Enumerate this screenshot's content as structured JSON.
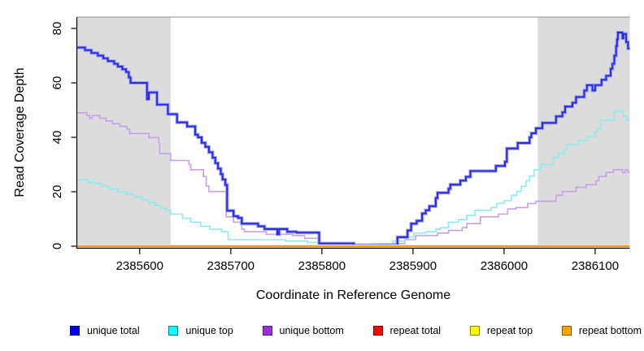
{
  "chart_data": {
    "type": "line",
    "subtype": "step",
    "title": "",
    "xlabel": "Coordinate in Reference Genome",
    "ylabel": "Read Coverage Depth",
    "xlim": [
      2385531,
      2386138
    ],
    "ylim": [
      0,
      80
    ],
    "grid": false,
    "legend_position": "bottom",
    "background_color": "#FFFFFF",
    "shaded_region_color": "#DCDCDC",
    "top_border_color": "#8F8F8F",
    "xticks": [
      {
        "value": 2385600,
        "label": "2385600"
      },
      {
        "value": 2385700,
        "label": "2385700"
      },
      {
        "value": 2385800,
        "label": "2385800"
      },
      {
        "value": 2385900,
        "label": "2385900"
      },
      {
        "value": 2386000,
        "label": "2386000"
      },
      {
        "value": 2386100,
        "label": "2386100"
      }
    ],
    "yticks": [
      {
        "value": 0,
        "label": "0"
      },
      {
        "value": 20,
        "label": "20"
      },
      {
        "value": 40,
        "label": "40"
      },
      {
        "value": 60,
        "label": "60"
      },
      {
        "value": 80,
        "label": "80"
      }
    ],
    "shaded_regions": [
      {
        "start": 2385531,
        "end": 2385634
      },
      {
        "start": 2386037,
        "end": 2386138
      }
    ],
    "series": [
      {
        "name": "unique total",
        "color": "#2B2BE3",
        "halo": "#9C9CF0",
        "width": 2,
        "zorder": 5,
        "x": [
          2385531,
          2385540,
          2385547,
          2385554,
          2385560,
          2385565,
          2385572,
          2385576,
          2385581,
          2385585,
          2385588,
          2385590,
          2385608,
          2385610,
          2385619,
          2385631,
          2385641,
          2385652,
          2385661,
          2385664,
          2385668,
          2385672,
          2385676,
          2385680,
          2385683,
          2385686,
          2385689,
          2385691,
          2385694,
          2385696,
          2385703,
          2385708,
          2385712,
          2385730,
          2385737,
          2385751,
          2385753,
          2385762,
          2385772,
          2385797,
          2385835,
          2385883,
          2385894,
          2385898,
          2385904,
          2385910,
          2385914,
          2385918,
          2385925,
          2385927,
          2385939,
          2385941,
          2385952,
          2385958,
          2385963,
          2385991,
          2386001,
          2386003,
          2386015,
          2386028,
          2386030,
          2386035,
          2386042,
          2386057,
          2386064,
          2386067,
          2386075,
          2386079,
          2386088,
          2386091,
          2386097,
          2386100,
          2386107,
          2386112,
          2386117,
          2386119,
          2386121,
          2386123,
          2386124,
          2386125,
          2386130,
          2386131,
          2386134,
          2386136
        ],
        "y": [
          73,
          72,
          71,
          70,
          69,
          68,
          67,
          66,
          65,
          64,
          62,
          60,
          54,
          56.5,
          52,
          48.5,
          45.5,
          44,
          41,
          40,
          38,
          36.5,
          34.5,
          32.5,
          30.5,
          28.5,
          26.5,
          24.5,
          22.5,
          13,
          11,
          10.4,
          8.3,
          7.3,
          6.3,
          4.4,
          6.3,
          5.3,
          5,
          1,
          0.4,
          3.3,
          5.8,
          8.3,
          9.3,
          12,
          13.2,
          14.7,
          17.7,
          19.6,
          21.1,
          22.6,
          24.1,
          25.5,
          27.6,
          29.5,
          31,
          35.9,
          37.9,
          40,
          41.5,
          43.3,
          45.3,
          47.7,
          49.2,
          51.3,
          52.7,
          54.8,
          57.2,
          59.2,
          57.2,
          59.2,
          61.1,
          62.6,
          65.2,
          67,
          70,
          73.5,
          76,
          78.5,
          76.4,
          78,
          75,
          72.6
        ]
      },
      {
        "name": "unique top",
        "color": "#8DECEC",
        "halo": null,
        "width": 1.6,
        "zorder": 4,
        "x": [
          2385531,
          2385543,
          2385551,
          2385558,
          2385567,
          2385576,
          2385585,
          2385594,
          2385603,
          2385610,
          2385617,
          2385623,
          2385629,
          2385634,
          2385647,
          2385656,
          2385667,
          2385677,
          2385690,
          2385697,
          2385760,
          2385784,
          2385800,
          2385855,
          2385878,
          2385891,
          2385901,
          2385914,
          2385925,
          2385930,
          2385939,
          2385950,
          2385959,
          2385968,
          2385986,
          2385992,
          2386000,
          2386008,
          2386014,
          2386019,
          2386024,
          2386028,
          2386033,
          2386040,
          2386054,
          2386060,
          2386066,
          2386069,
          2386082,
          2386091,
          2386100,
          2386102,
          2386106,
          2386121,
          2386131,
          2386135
        ],
        "y": [
          24.5,
          23.5,
          23,
          22,
          21,
          20,
          19,
          18,
          17,
          16,
          15,
          14,
          13.2,
          11.8,
          10.3,
          8.8,
          7.3,
          6.3,
          5.3,
          2.4,
          1.9,
          1.4,
          0.5,
          0.9,
          1.9,
          3.3,
          4.8,
          5.3,
          6.3,
          6.8,
          8.8,
          9.8,
          11.3,
          13.2,
          14.2,
          15.7,
          16.7,
          18.7,
          20.1,
          22,
          24,
          25.8,
          28.1,
          30,
          32.6,
          34,
          35.5,
          37.3,
          38.8,
          40.3,
          41.8,
          42.9,
          46.2,
          49.5,
          47.7,
          46.2
        ]
      },
      {
        "name": "unique bottom",
        "color": "#C9A0E4",
        "halo": null,
        "width": 1.6,
        "zorder": 3,
        "x": [
          2385531,
          2385542,
          2385545,
          2385548,
          2385556,
          2385563,
          2385570,
          2385578,
          2385586,
          2385589,
          2385610,
          2385621,
          2385622,
          2385634,
          2385654,
          2385656,
          2385670,
          2385673,
          2385676,
          2385695,
          2385703,
          2385712,
          2385715,
          2385739,
          2385768,
          2385781,
          2385797,
          2385877,
          2385891,
          2385903,
          2385927,
          2385939,
          2385954,
          2385959,
          2385974,
          2385994,
          2386004,
          2386013,
          2386026,
          2386035,
          2386057,
          2386064,
          2386079,
          2386090,
          2386101,
          2386104,
          2386112,
          2386120,
          2386130,
          2386133,
          2386136
        ],
        "y": [
          49,
          48,
          47,
          48,
          47,
          46,
          45,
          44,
          43,
          41.4,
          39.9,
          37.9,
          34,
          31.5,
          30,
          28.1,
          25.6,
          22.1,
          20.1,
          10.8,
          8.8,
          6.3,
          5.3,
          4.4,
          3.9,
          2.9,
          0.4,
          1,
          2.4,
          3.9,
          4.8,
          5.8,
          6.8,
          8.3,
          10.8,
          11.8,
          13.7,
          14.2,
          15.7,
          16.5,
          18.7,
          20.1,
          21.6,
          22.6,
          24.1,
          25.6,
          27.1,
          28.1,
          27,
          28,
          27.1
        ]
      },
      {
        "name": "repeat total",
        "color": "#E00000",
        "halo": null,
        "width": 1.6,
        "zorder": 1,
        "x": [
          2385531,
          2386138
        ],
        "y": [
          0,
          0
        ]
      },
      {
        "name": "repeat top",
        "color": "#FFF200",
        "halo": null,
        "width": 1.6,
        "zorder": 2,
        "x": [
          2385531,
          2386138
        ],
        "y": [
          0,
          0
        ]
      },
      {
        "name": "repeat bottom",
        "color": "#FF9815",
        "halo": "#FFE0B0",
        "width": 2,
        "zorder": 6,
        "x": [
          2385531,
          2386138
        ],
        "y": [
          0,
          0
        ]
      }
    ],
    "legend": [
      {
        "label": "unique total",
        "fill": "#0000EE",
        "border": "#00008B"
      },
      {
        "label": "unique top",
        "fill": "#00FFFF",
        "border": "#00868B"
      },
      {
        "label": "unique bottom",
        "fill": "#9B30D9",
        "border": "#551A8B"
      },
      {
        "label": "repeat total",
        "fill": "#FF0000",
        "border": "#8B0000"
      },
      {
        "label": "repeat top",
        "fill": "#FFFF00",
        "border": "#8B8B00"
      },
      {
        "label": "repeat bottom",
        "fill": "#FFA500",
        "border": "#8B5A00"
      }
    ]
  }
}
